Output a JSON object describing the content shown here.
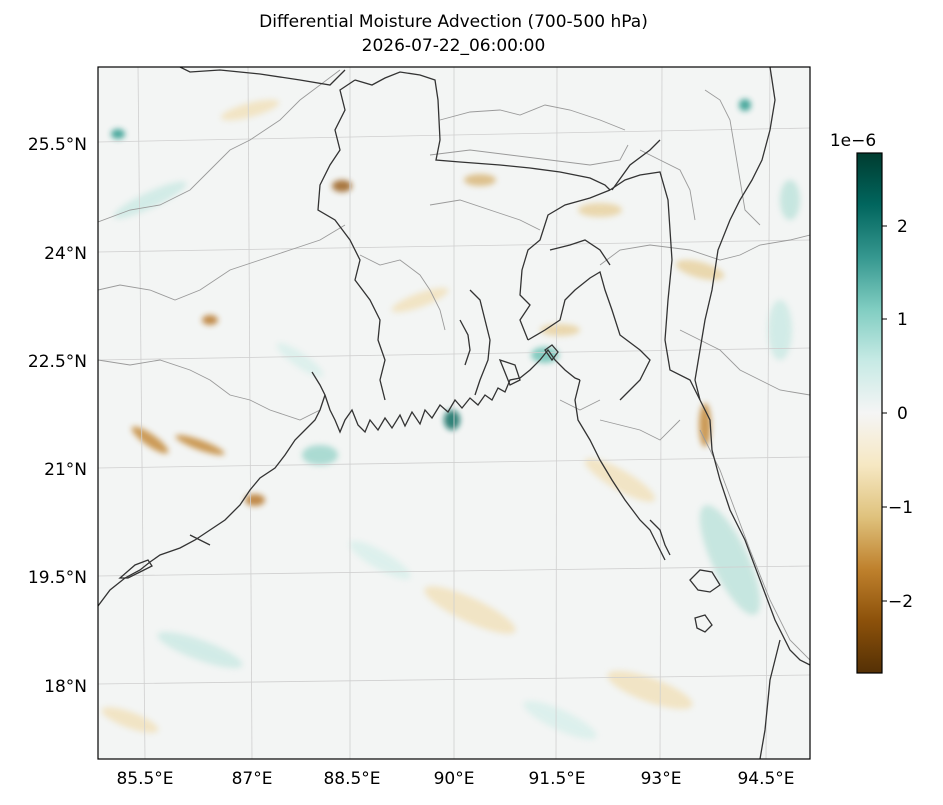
{
  "figure": {
    "title": "Differential Moisture Advection (700-500 hPa)",
    "timestamp": "2026-07-22_06:00:00"
  },
  "map": {
    "lat_labels": [
      "25.5°N",
      "24°N",
      "22.5°N",
      "21°N",
      "19.5°N",
      "18°N"
    ],
    "lon_labels": [
      "85.5°E",
      "87°E",
      "88.5°E",
      "90°E",
      "91.5°E",
      "93°E",
      "94.5°E"
    ],
    "extent": {
      "lon": [
        84.8,
        94.9
      ],
      "lat": [
        17.1,
        26.7
      ]
    },
    "gridlines": true
  },
  "colorbar": {
    "multiplier": "1e−6",
    "ticks": [
      "2",
      "1",
      "0",
      "−1",
      "−2"
    ],
    "tick_values": [
      2,
      1,
      0,
      -1,
      -2
    ],
    "range": [
      -2.75,
      2.75
    ],
    "colormap": "BrBG",
    "colors": [
      "#543005",
      "#8c510a",
      "#bf812d",
      "#dfc27d",
      "#f6e8c3",
      "#f5f5f5",
      "#c7eae5",
      "#80cdc1",
      "#35978f",
      "#01665e",
      "#003c30"
    ]
  }
}
